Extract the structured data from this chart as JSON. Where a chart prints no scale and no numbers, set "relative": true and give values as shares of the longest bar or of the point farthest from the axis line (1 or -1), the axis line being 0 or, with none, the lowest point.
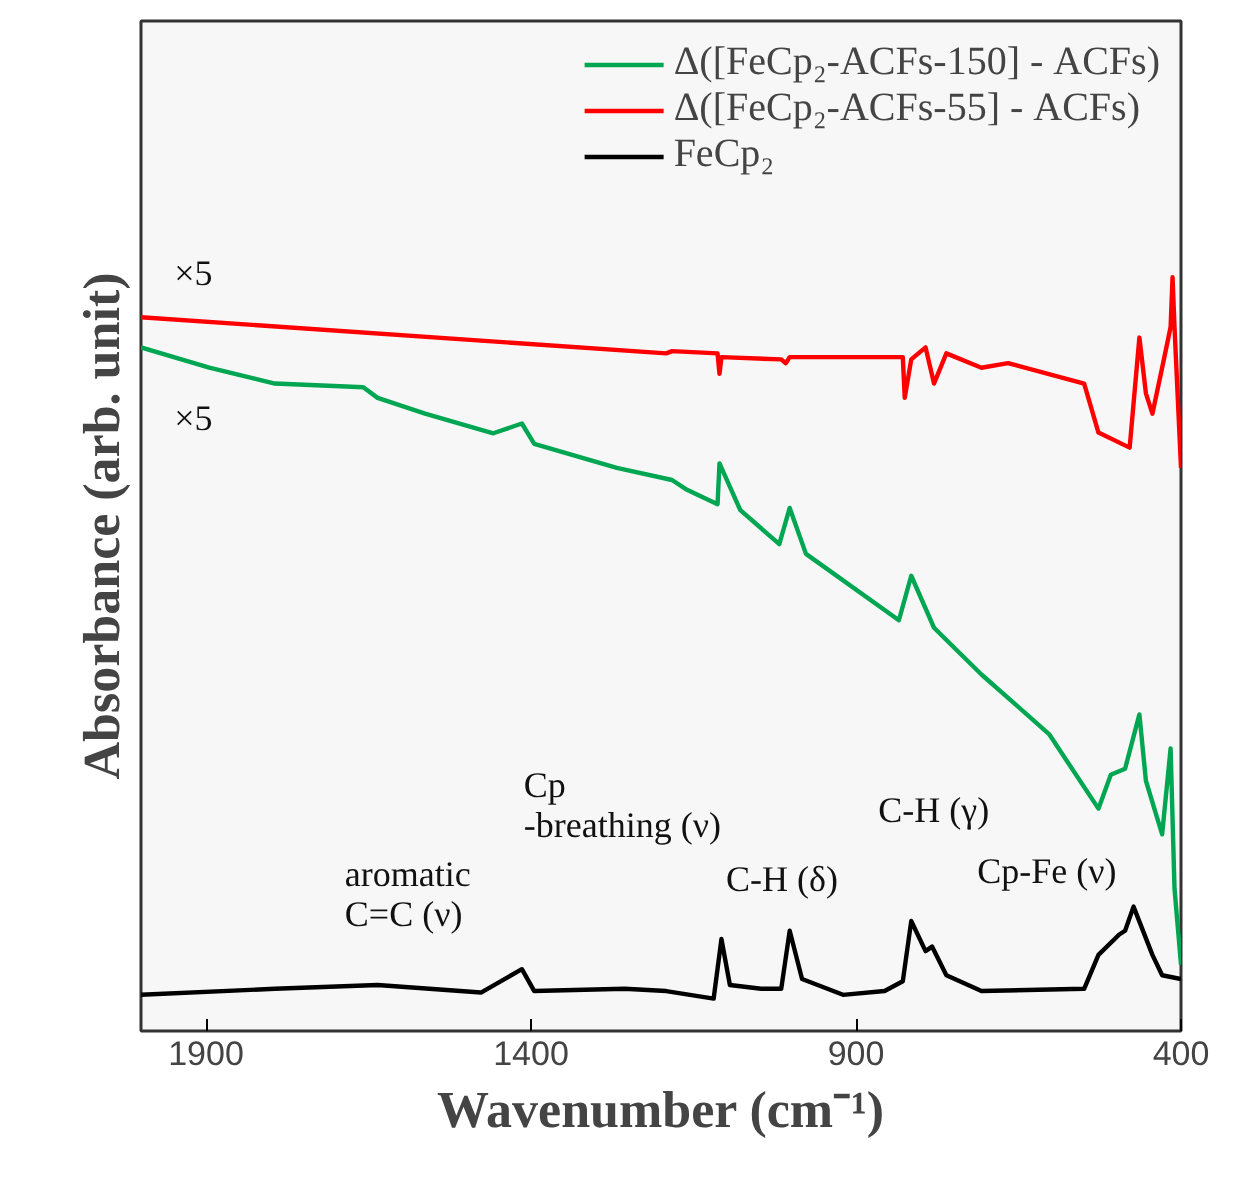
{
  "chart_data": {
    "type": "line",
    "relative": true,
    "xlabel": "Wavenumber (cm⁻¹)",
    "ylabel": "Absorbance (arb. unit)",
    "xlim": [
      2000,
      400
    ],
    "xticks": [
      1900,
      1400,
      900,
      400
    ],
    "grid": false,
    "legend": "top right",
    "marker": "none",
    "line_style": "solid",
    "series": [
      {
        "name": "Δ([FeCp₂-ACFs-150] - ACFs)",
        "color": "#00a651",
        "x": [
          2000,
          1895,
          1794,
          1658,
          1636,
          1563,
          1458,
          1414,
          1395,
          1268,
          1183,
          1160,
          1113,
          1110,
          1078,
          1018,
          1002,
          977,
          834,
          815,
          780,
          707,
          603,
          527,
          508,
          486,
          464,
          454,
          429,
          416,
          410,
          400
        ],
        "values": [
          0.907,
          0.88,
          0.859,
          0.854,
          0.84,
          0.819,
          0.793,
          0.806,
          0.779,
          0.747,
          0.731,
          0.718,
          0.699,
          0.753,
          0.691,
          0.646,
          0.694,
          0.633,
          0.545,
          0.604,
          0.535,
          0.473,
          0.394,
          0.295,
          0.34,
          0.348,
          0.42,
          0.332,
          0.261,
          0.375,
          0.189,
          0.088
        ]
      },
      {
        "name": "Δ([FeCp₂-ACFs-55] - ACFs)",
        "color": "#ff0000",
        "x": [
          2000,
          1192,
          1183,
          1113,
          1110,
          1107,
          1015,
          1008,
          1002,
          828,
          825,
          815,
          793,
          780,
          761,
          707,
          666,
          549,
          527,
          479,
          464,
          454,
          444,
          429,
          416,
          413,
          410,
          400
        ],
        "values": [
          0.947,
          0.899,
          0.902,
          0.899,
          0.872,
          0.894,
          0.891,
          0.886,
          0.894,
          0.894,
          0.84,
          0.891,
          0.907,
          0.859,
          0.899,
          0.88,
          0.886,
          0.859,
          0.794,
          0.774,
          0.92,
          0.846,
          0.819,
          0.88,
          0.934,
          1.0,
          0.934,
          0.747
        ]
      },
      {
        "name": "FeCp₂",
        "color": "#000000",
        "x": [
          2000,
          1794,
          1636,
          1477,
          1414,
          1395,
          1256,
          1192,
          1119,
          1107,
          1094,
          1046,
          1015,
          1002,
          983,
          920,
          856,
          828,
          815,
          793,
          783,
          761,
          707,
          549,
          527,
          495,
          486,
          473,
          444,
          429,
          400
        ],
        "values": [
          0.048,
          0.056,
          0.061,
          0.051,
          0.082,
          0.053,
          0.056,
          0.053,
          0.043,
          0.122,
          0.061,
          0.056,
          0.056,
          0.133,
          0.069,
          0.048,
          0.053,
          0.066,
          0.146,
          0.106,
          0.112,
          0.074,
          0.053,
          0.056,
          0.101,
          0.128,
          0.133,
          0.165,
          0.101,
          0.074,
          0.069
        ]
      }
    ],
    "annotations": [
      "×5",
      "×5",
      "aromatic\nC=C (ν)",
      "Cp\n-breathing (ν)",
      "C-H (δ)",
      "C-H (γ)",
      "Cp-Fe (ν)"
    ]
  }
}
